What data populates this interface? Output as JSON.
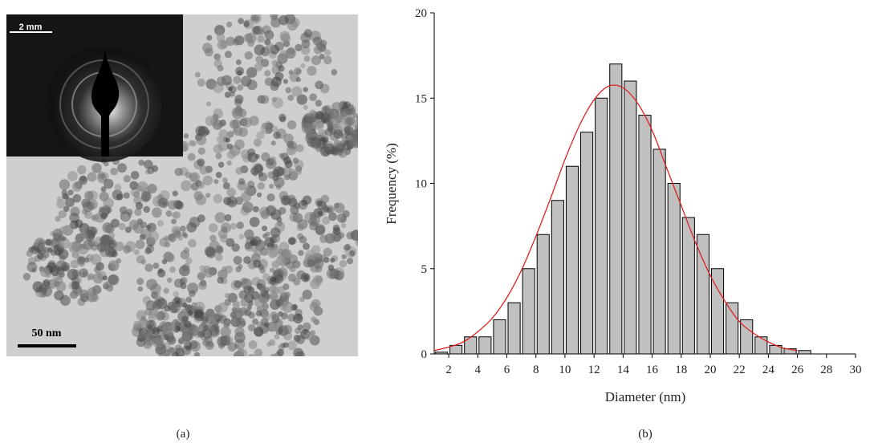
{
  "panel_a": {
    "inset_scale_bar": "2 mm",
    "scale_bar": "50 nm",
    "caption": "(a)"
  },
  "chart_data": {
    "type": "histogram",
    "caption": "(b)",
    "x_label": "Diameter (nm)",
    "y_label": "Frequency (%)",
    "bins": [
      1,
      2,
      3,
      4,
      5,
      6,
      7,
      8,
      9,
      10,
      11,
      12,
      13,
      14,
      15,
      16,
      17,
      18,
      19,
      20,
      21,
      22,
      23,
      24,
      25,
      26,
      27
    ],
    "values": [
      0.1,
      0.5,
      1,
      1,
      2,
      3,
      5,
      7,
      9,
      11,
      13,
      15,
      17,
      16,
      14,
      12,
      10,
      8,
      7,
      5,
      3,
      2,
      1,
      0.5,
      0.3,
      0.2
    ],
    "color": "#c0c0c0",
    "fit": {
      "color": "#e02020",
      "x": [
        1,
        2,
        3,
        4,
        5,
        6,
        7,
        8,
        9,
        10,
        11,
        12,
        13,
        14,
        15,
        16,
        17,
        18,
        19,
        20,
        21,
        22,
        23,
        24,
        25,
        26
      ],
      "values": [
        0.2,
        0.4,
        0.7,
        1.3,
        2.1,
        3.3,
        4.9,
        6.9,
        9.1,
        11.4,
        13.4,
        14.9,
        15.7,
        15.6,
        14.7,
        13.1,
        10.9,
        8.7,
        6.5,
        4.6,
        3.1,
        1.9,
        1.2,
        0.7,
        0.35,
        0.2
      ]
    },
    "xlim": [
      1,
      30
    ],
    "xticks": [
      2,
      4,
      6,
      8,
      10,
      12,
      14,
      16,
      18,
      20,
      22,
      24,
      26,
      28,
      30
    ],
    "ylim": [
      0,
      20
    ],
    "yticks": [
      0,
      5,
      10,
      15,
      20
    ]
  }
}
